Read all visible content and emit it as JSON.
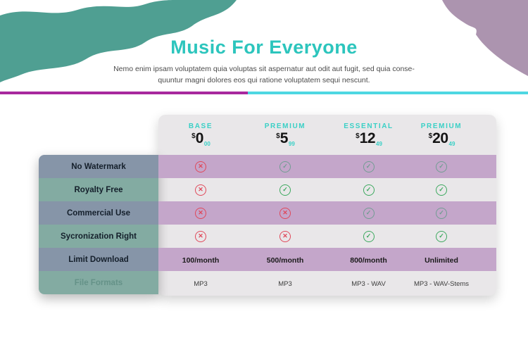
{
  "page": {
    "title": "Music For Everyone",
    "subtitle_line1": "Nemo enim ipsam voluptatem quia voluptas sit aspernatur aut odit aut fugit, sed quia conse-",
    "subtitle_line2": "quuntur magni dolores eos qui ratione voluptatem sequi nescunt."
  },
  "colors": {
    "title_teal": "#2cc5bd",
    "plan_name_teal": "#3ad0c6",
    "blob_teal": "#4f9f92",
    "blob_mauve": "#ac94af",
    "divider_left_magenta": "#a8289e",
    "divider_right_cyan": "#4ed7e2",
    "card_bg": "#e9e7e9",
    "stripe_purple": "#c4a6ca",
    "label_slate": "#8695a8",
    "label_sage": "#83aba2",
    "cross_red": "#e0485a",
    "check_green": "#3da95f"
  },
  "plans": [
    {
      "name": "BASE",
      "currency": "$",
      "amount": "0",
      "cents": "00"
    },
    {
      "name": "PREMIUM",
      "currency": "$",
      "amount": "5",
      "cents": "99"
    },
    {
      "name": "ESSENTIAL",
      "currency": "$",
      "amount": "12",
      "cents": "49"
    },
    {
      "name": "PREMIUM",
      "currency": "$",
      "amount": "20",
      "cents": "49"
    }
  ],
  "features": [
    {
      "label": "No Watermark",
      "type": "icons",
      "values": [
        "cross",
        "check",
        "check",
        "check"
      ]
    },
    {
      "label": "Royalty Free",
      "type": "icons",
      "values": [
        "cross",
        "check",
        "check",
        "check"
      ]
    },
    {
      "label": "Commercial Use",
      "type": "icons",
      "values": [
        "cross",
        "cross",
        "check",
        "check"
      ]
    },
    {
      "label": "Sycronization Right",
      "type": "icons",
      "values": [
        "cross",
        "cross",
        "check",
        "check"
      ]
    },
    {
      "label": "Limit Download",
      "type": "text-bold",
      "values": [
        "100/month",
        "500/month",
        "800/month",
        "Unlimited"
      ]
    },
    {
      "label": "File Formats",
      "type": "text",
      "values": [
        "MP3",
        "MP3",
        "MP3 - WAV",
        "MP3 - WAV-Stems"
      ],
      "label_faint": true
    }
  ],
  "icons": {
    "check": {
      "glyph": "✓",
      "name": "check-circle-icon"
    },
    "cross": {
      "glyph": "✕",
      "name": "cross-circle-icon"
    }
  }
}
